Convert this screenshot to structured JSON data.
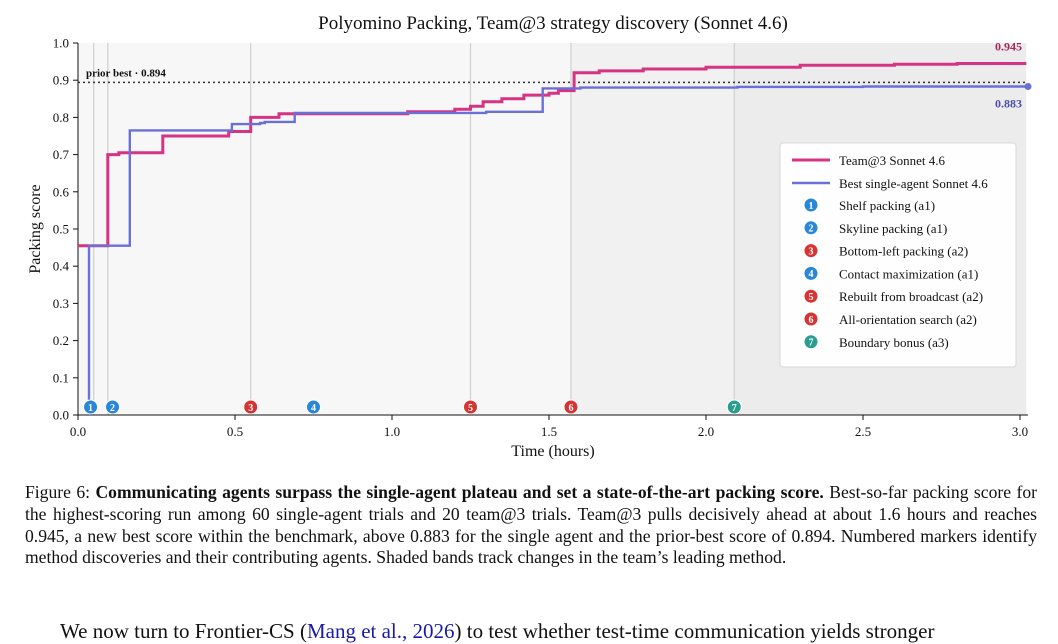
{
  "chart_data": {
    "type": "line",
    "title": "Polyomino Packing, Team@3 strategy discovery (Sonnet 4.6)",
    "xlabel": "Time (hours)",
    "ylabel": "Packing score",
    "xlim": [
      0.0,
      3.0
    ],
    "ylim": [
      0.0,
      1.0
    ],
    "x_ticks": [
      "0.0",
      "0.5",
      "1.0",
      "1.5",
      "2.0",
      "2.5",
      "3.0"
    ],
    "y_ticks": [
      "0.0",
      "0.1",
      "0.2",
      "0.3",
      "0.4",
      "0.5",
      "0.6",
      "0.7",
      "0.8",
      "0.9",
      "1.0"
    ],
    "series": [
      {
        "name": "Team@3 Sonnet 4.6",
        "color": "#d63384",
        "points": [
          [
            0.0,
            0.455
          ],
          [
            0.095,
            0.455
          ],
          [
            0.095,
            0.7
          ],
          [
            0.13,
            0.7
          ],
          [
            0.13,
            0.705
          ],
          [
            0.18,
            0.705
          ],
          [
            0.18,
            0.705
          ],
          [
            0.27,
            0.705
          ],
          [
            0.27,
            0.75
          ],
          [
            0.48,
            0.75
          ],
          [
            0.48,
            0.762
          ],
          [
            0.55,
            0.762
          ],
          [
            0.55,
            0.8
          ],
          [
            0.64,
            0.8
          ],
          [
            0.64,
            0.81
          ],
          [
            1.05,
            0.81
          ],
          [
            1.05,
            0.815
          ],
          [
            1.2,
            0.815
          ],
          [
            1.2,
            0.822
          ],
          [
            1.25,
            0.822
          ],
          [
            1.25,
            0.83
          ],
          [
            1.29,
            0.83
          ],
          [
            1.29,
            0.842
          ],
          [
            1.35,
            0.842
          ],
          [
            1.35,
            0.85
          ],
          [
            1.42,
            0.85
          ],
          [
            1.42,
            0.86
          ],
          [
            1.5,
            0.86
          ],
          [
            1.5,
            0.865
          ],
          [
            1.53,
            0.865
          ],
          [
            1.53,
            0.872
          ],
          [
            1.58,
            0.872
          ],
          [
            1.58,
            0.92
          ],
          [
            1.66,
            0.92
          ],
          [
            1.66,
            0.925
          ],
          [
            1.8,
            0.925
          ],
          [
            1.8,
            0.93
          ],
          [
            2.0,
            0.93
          ],
          [
            2.0,
            0.935
          ],
          [
            2.3,
            0.935
          ],
          [
            2.3,
            0.94
          ],
          [
            2.6,
            0.94
          ],
          [
            2.6,
            0.943
          ],
          [
            2.8,
            0.943
          ],
          [
            2.8,
            0.945
          ],
          [
            3.02,
            0.945
          ]
        ]
      },
      {
        "name": "Best single-agent Sonnet 4.6",
        "color": "#6b70d6",
        "points": [
          [
            0.035,
            0.0
          ],
          [
            0.035,
            0.455
          ],
          [
            0.165,
            0.455
          ],
          [
            0.165,
            0.765
          ],
          [
            0.49,
            0.765
          ],
          [
            0.49,
            0.782
          ],
          [
            0.58,
            0.782
          ],
          [
            0.58,
            0.785
          ],
          [
            0.595,
            0.785
          ],
          [
            0.595,
            0.788
          ],
          [
            0.69,
            0.788
          ],
          [
            0.69,
            0.812
          ],
          [
            1.3,
            0.812
          ],
          [
            1.3,
            0.815
          ],
          [
            1.48,
            0.815
          ],
          [
            1.48,
            0.878
          ],
          [
            1.6,
            0.878
          ],
          [
            1.6,
            0.88
          ],
          [
            2.1,
            0.88
          ],
          [
            2.1,
            0.882
          ],
          [
            2.5,
            0.882
          ],
          [
            2.5,
            0.883
          ],
          [
            3.02,
            0.883
          ]
        ]
      }
    ],
    "end_labels": [
      {
        "text": "0.945",
        "series": 0,
        "value": 0.945
      },
      {
        "text": "0.883",
        "series": 1,
        "value": 0.883
      }
    ],
    "reference_line": {
      "label": "prior best · 0.894",
      "value": 0.894
    },
    "events": [
      {
        "n": "1",
        "x": 0.04,
        "label": "Shelf packing (a1)",
        "color": "#2a86d6"
      },
      {
        "n": "2",
        "x": 0.11,
        "label": "Skyline packing (a1)",
        "color": "#2a86d6"
      },
      {
        "n": "3",
        "x": 0.55,
        "label": "Bottom-left packing (a2)",
        "color": "#d63333"
      },
      {
        "n": "4",
        "x": 0.75,
        "label": "Contact maximization (a1)",
        "color": "#2a86d6"
      },
      {
        "n": "5",
        "x": 1.25,
        "label": "Rebuilt from broadcast (a2)",
        "color": "#d63333"
      },
      {
        "n": "6",
        "x": 1.57,
        "label": "All-orientation search (a2)",
        "color": "#d63333"
      },
      {
        "n": "7",
        "x": 2.09,
        "label": "Boundary bonus (a3)",
        "color": "#2a9d8f"
      }
    ],
    "event_lines_x": [
      0.05,
      0.095,
      0.55,
      1.25,
      1.57,
      2.09
    ],
    "bands": [
      [
        0.0,
        1.57,
        "#f7f7f7"
      ],
      [
        1.57,
        2.09,
        "#f1f1f1"
      ],
      [
        2.09,
        3.02,
        "#ececec"
      ]
    ],
    "legend_position": "right"
  },
  "caption": {
    "prefix": "Figure 6: ",
    "bold": "Communicating agents surpass the single-agent plateau and set a state-of-the-art packing score.",
    "text": " Best-so-far packing score for the highest-scoring run among 60 single-agent trials and 20 team@3 trials. Team@3 pulls decisively ahead at about 1.6 hours and reaches 0.945, a new best score within the benchmark, above 0.883 for the single agent and the prior-best score of 0.894. Numbered markers identify method discoveries and their contributing agents. Shaded bands track changes in the team’s leading method."
  },
  "body": {
    "before": "We now turn to Frontier-CS (",
    "cite": "Mang et al., 2026",
    "after": ") to test whether test-time communication yields stronger"
  }
}
